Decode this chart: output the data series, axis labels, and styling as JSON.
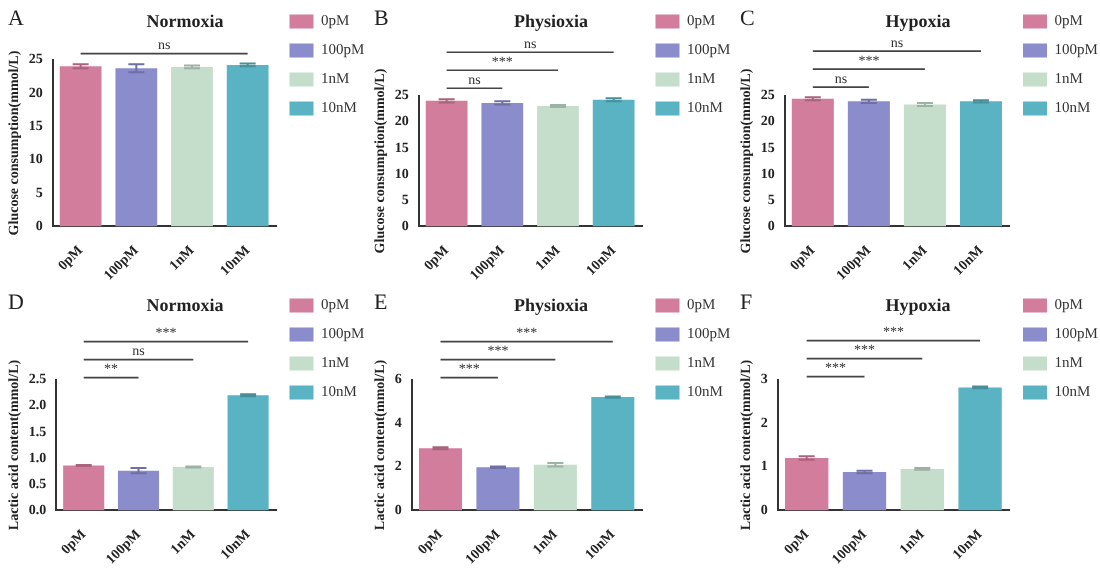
{
  "chart_data": [
    {
      "type": "bar",
      "title": "Normoxia",
      "ylabel": "Glucose consumption(mmol/L)",
      "categories": [
        "0pM",
        "100pM",
        "1nM",
        "10nM"
      ],
      "series": [
        {
          "name": "0pM",
          "color": "#d27d9c",
          "values": [
            24.0,
            null,
            null,
            null
          ],
          "errors": [
            0.3,
            null,
            null,
            null
          ]
        },
        {
          "name": "100pM",
          "color": "#8a8ccc",
          "values": [
            null,
            23.7,
            null,
            null
          ],
          "errors": [
            null,
            0.6,
            null,
            null
          ]
        },
        {
          "name": "1nM",
          "color": "#c4decb",
          "values": [
            null,
            null,
            23.9,
            null
          ],
          "errors": [
            null,
            null,
            0.2,
            null
          ]
        },
        {
          "name": "10nM",
          "color": "#5ab3c2",
          "values": [
            null,
            null,
            null,
            24.2
          ],
          "errors": [
            null,
            null,
            null,
            0.2
          ]
        }
      ],
      "ylim": [
        0,
        25
      ],
      "yticks": [
        0,
        5,
        10,
        15,
        20,
        25
      ],
      "legend": "right",
      "annotations": [
        "A",
        "ns"
      ]
    },
    {
      "type": "bar",
      "title": "Physioxia",
      "ylabel": "Glucose consumption(mmol/L)",
      "categories": [
        "0pM",
        "100pM",
        "1nM",
        "10nM"
      ],
      "series": [
        {
          "name": "0pM",
          "color": "#d27d9c",
          "values": [
            24.0,
            null,
            null,
            null
          ],
          "errors": [
            0.3,
            null,
            null,
            null
          ]
        },
        {
          "name": "100pM",
          "color": "#8a8ccc",
          "values": [
            null,
            23.6,
            null,
            null
          ],
          "errors": [
            null,
            0.3,
            null,
            null
          ]
        },
        {
          "name": "1nM",
          "color": "#c4decb",
          "values": [
            null,
            null,
            23.0,
            null
          ],
          "errors": [
            null,
            null,
            0.2,
            null
          ]
        },
        {
          "name": "10nM",
          "color": "#5ab3c2",
          "values": [
            null,
            null,
            null,
            24.2
          ],
          "errors": [
            null,
            null,
            null,
            0.3
          ]
        }
      ],
      "ylim": [
        0,
        25
      ],
      "yticks": [
        0,
        5,
        10,
        15,
        20,
        25
      ],
      "legend": "right",
      "annotations": [
        "B",
        "ns",
        "***",
        "ns"
      ]
    },
    {
      "type": "bar",
      "title": "Hypoxia",
      "ylabel": "Glucose consumption(mmol/L)",
      "categories": [
        "0pM",
        "100pM",
        "1nM",
        "10nM"
      ],
      "series": [
        {
          "name": "0pM",
          "color": "#d27d9c",
          "values": [
            24.4,
            null,
            null,
            null
          ],
          "errors": [
            0.3,
            null,
            null,
            null
          ]
        },
        {
          "name": "100pM",
          "color": "#8a8ccc",
          "values": [
            null,
            23.9,
            null,
            null
          ],
          "errors": [
            null,
            0.3,
            null,
            null
          ]
        },
        {
          "name": "1nM",
          "color": "#c4decb",
          "values": [
            null,
            null,
            23.3,
            null
          ],
          "errors": [
            null,
            null,
            0.3,
            null
          ]
        },
        {
          "name": "10nM",
          "color": "#5ab3c2",
          "values": [
            null,
            null,
            null,
            23.9
          ],
          "errors": [
            null,
            null,
            null,
            0.2
          ]
        }
      ],
      "ylim": [
        0,
        25
      ],
      "yticks": [
        0,
        5,
        10,
        15,
        20,
        25
      ],
      "legend": "right",
      "annotations": [
        "C",
        "ns",
        "***",
        "ns"
      ]
    },
    {
      "type": "bar",
      "title": "Normoxia",
      "ylabel": "Lactic acid content(mmol/L)",
      "categories": [
        "0pM",
        "100pM",
        "1nM",
        "10nM"
      ],
      "series": [
        {
          "name": "0pM",
          "color": "#d27d9c",
          "values": [
            0.86,
            null,
            null,
            null
          ],
          "errors": [
            0.01,
            null,
            null,
            null
          ]
        },
        {
          "name": "100pM",
          "color": "#8a8ccc",
          "values": [
            null,
            0.76,
            null,
            null
          ],
          "errors": [
            null,
            0.05,
            null,
            null
          ]
        },
        {
          "name": "1nM",
          "color": "#c4decb",
          "values": [
            null,
            null,
            0.83,
            null
          ],
          "errors": [
            null,
            null,
            0.01,
            null
          ]
        },
        {
          "name": "10nM",
          "color": "#5ab3c2",
          "values": [
            null,
            null,
            null,
            2.2
          ],
          "errors": [
            null,
            null,
            null,
            0.02
          ]
        }
      ],
      "ylim": [
        0,
        2.5
      ],
      "yticks": [
        {
          "value": 0,
          "label": "0.0"
        },
        {
          "value": 0.5,
          "label": "0.5"
        },
        {
          "value": 1,
          "label": "1.0"
        },
        {
          "value": 1.5,
          "label": "1.5"
        },
        {
          "value": 2,
          "label": "2.0"
        },
        {
          "value": 2.5,
          "label": "2.5"
        }
      ],
      "legend": "right",
      "annotations": [
        "D",
        "***",
        "ns",
        "**"
      ]
    },
    {
      "type": "bar",
      "title": "Physioxia",
      "ylabel": "Lactic acid content(mmol/L)",
      "categories": [
        "0pM",
        "100pM",
        "1nM",
        "10nM"
      ],
      "series": [
        {
          "name": "0pM",
          "color": "#d27d9c",
          "values": [
            2.85,
            null,
            null,
            null
          ],
          "errors": [
            0.05,
            null,
            null,
            null
          ]
        },
        {
          "name": "100pM",
          "color": "#8a8ccc",
          "values": [
            null,
            1.98,
            null,
            null
          ],
          "errors": [
            null,
            0.03,
            null,
            null
          ]
        },
        {
          "name": "1nM",
          "color": "#c4decb",
          "values": [
            null,
            null,
            2.1,
            null
          ],
          "errors": [
            null,
            null,
            0.08,
            null
          ]
        },
        {
          "name": "10nM",
          "color": "#5ab3c2",
          "values": [
            null,
            null,
            null,
            5.2
          ],
          "errors": [
            null,
            null,
            null,
            0.03
          ]
        }
      ],
      "ylim": [
        0,
        6
      ],
      "yticks": [
        0,
        2,
        4,
        6
      ],
      "legend": "right",
      "annotations": [
        "E",
        "***",
        "***",
        "***"
      ]
    },
    {
      "type": "bar",
      "title": "Hypoxia",
      "ylabel": "Lactic acid content(mmol/L)",
      "categories": [
        "0pM",
        "100pM",
        "1nM",
        "10nM"
      ],
      "series": [
        {
          "name": "0pM",
          "color": "#d27d9c",
          "values": [
            1.2,
            null,
            null,
            null
          ],
          "errors": [
            0.04,
            null,
            null,
            null
          ]
        },
        {
          "name": "100pM",
          "color": "#8a8ccc",
          "values": [
            null,
            0.88,
            null,
            null
          ],
          "errors": [
            null,
            0.03,
            null,
            null
          ]
        },
        {
          "name": "1nM",
          "color": "#c4decb",
          "values": [
            null,
            null,
            0.95,
            null
          ],
          "errors": [
            null,
            null,
            0.02,
            null
          ]
        },
        {
          "name": "10nM",
          "color": "#5ab3c2",
          "values": [
            null,
            null,
            null,
            2.82
          ],
          "errors": [
            null,
            null,
            null,
            0.02
          ]
        }
      ],
      "ylim": [
        0,
        3
      ],
      "yticks": [
        0,
        1,
        2,
        3
      ],
      "legend": "right",
      "annotations": [
        "F",
        "***",
        "***",
        "***"
      ]
    }
  ]
}
